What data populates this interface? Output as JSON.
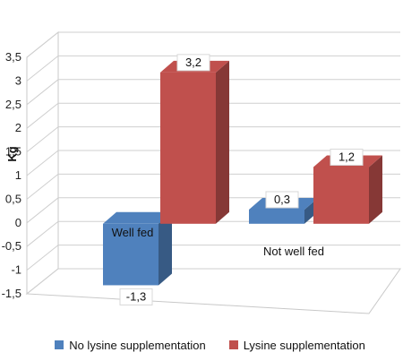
{
  "chart_data": {
    "type": "bar",
    "three_d": true,
    "categories": [
      "Well fed",
      "Not well fed"
    ],
    "series": [
      {
        "name": "No lysine supplementation",
        "values": [
          -1.3,
          0.3
        ],
        "color": "#4F81BD"
      },
      {
        "name": "Lysine supplementation",
        "values": [
          3.2,
          1.2
        ],
        "color": "#C0504D"
      }
    ],
    "data_labels": [
      [
        "-1,3",
        "0,3"
      ],
      [
        "3,2",
        "1,2"
      ]
    ],
    "title": "",
    "xlabel": "",
    "ylabel": "Kg",
    "ylim": [
      -1.5,
      3.5
    ],
    "yticks": [
      -1.5,
      -1,
      -0.5,
      0,
      0.5,
      1,
      1.5,
      2,
      2.5,
      3,
      3.5
    ],
    "ytick_labels": [
      "-1,5",
      "-1",
      "-0,5",
      "0",
      "0,5",
      "1",
      "1,5",
      "2",
      "2,5",
      "3",
      "3,5"
    ],
    "grid": true,
    "legend": "bottom"
  }
}
